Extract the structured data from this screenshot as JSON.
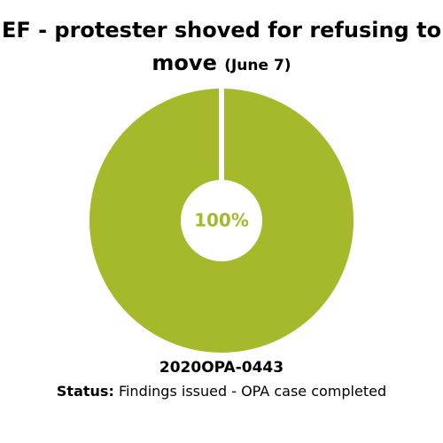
{
  "chart_data": {
    "type": "pie",
    "title": "EF - protester shoved for refusing to move",
    "subtitle": "(June 7)",
    "categories": [
      null
    ],
    "values": [
      100
    ],
    "value_labels": [
      "100%"
    ],
    "colors": [
      "#a5b92a"
    ],
    "donut": true,
    "case_id": "2020OPA-0443",
    "status_label": "Status:",
    "status": "Findings issued - OPA case completed"
  }
}
